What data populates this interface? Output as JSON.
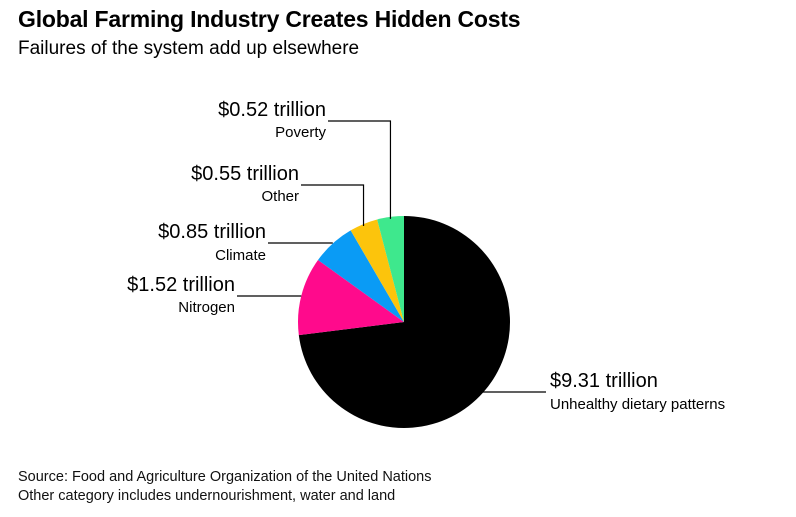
{
  "title": "Global Farming Industry Creates Hidden Costs",
  "subtitle": "Failures of the system add up elsewhere",
  "source_line": "Source: Food and Agriculture Organization of the United Nations",
  "note_line": "Other category includes undernourishment, water and land",
  "chart_data": {
    "type": "pie",
    "title": "Global Farming Industry Creates Hidden Costs",
    "subtitle": "Failures of the system add up elsewhere",
    "unit": "trillion",
    "slices": [
      {
        "label": "Unhealthy dietary patterns",
        "value": 9.31,
        "display": "$9.31 trillion",
        "color": "#000000"
      },
      {
        "label": "Nitrogen",
        "value": 1.52,
        "display": "$1.52 trillion",
        "color": "#ff0a8c"
      },
      {
        "label": "Climate",
        "value": 0.85,
        "display": "$0.85 trillion",
        "color": "#0a9bf5"
      },
      {
        "label": "Other",
        "value": 0.55,
        "display": "$0.55 trillion",
        "color": "#fcc40c"
      },
      {
        "label": "Poverty",
        "value": 0.52,
        "display": "$0.52 trillion",
        "color": "#3ee88d"
      }
    ]
  }
}
